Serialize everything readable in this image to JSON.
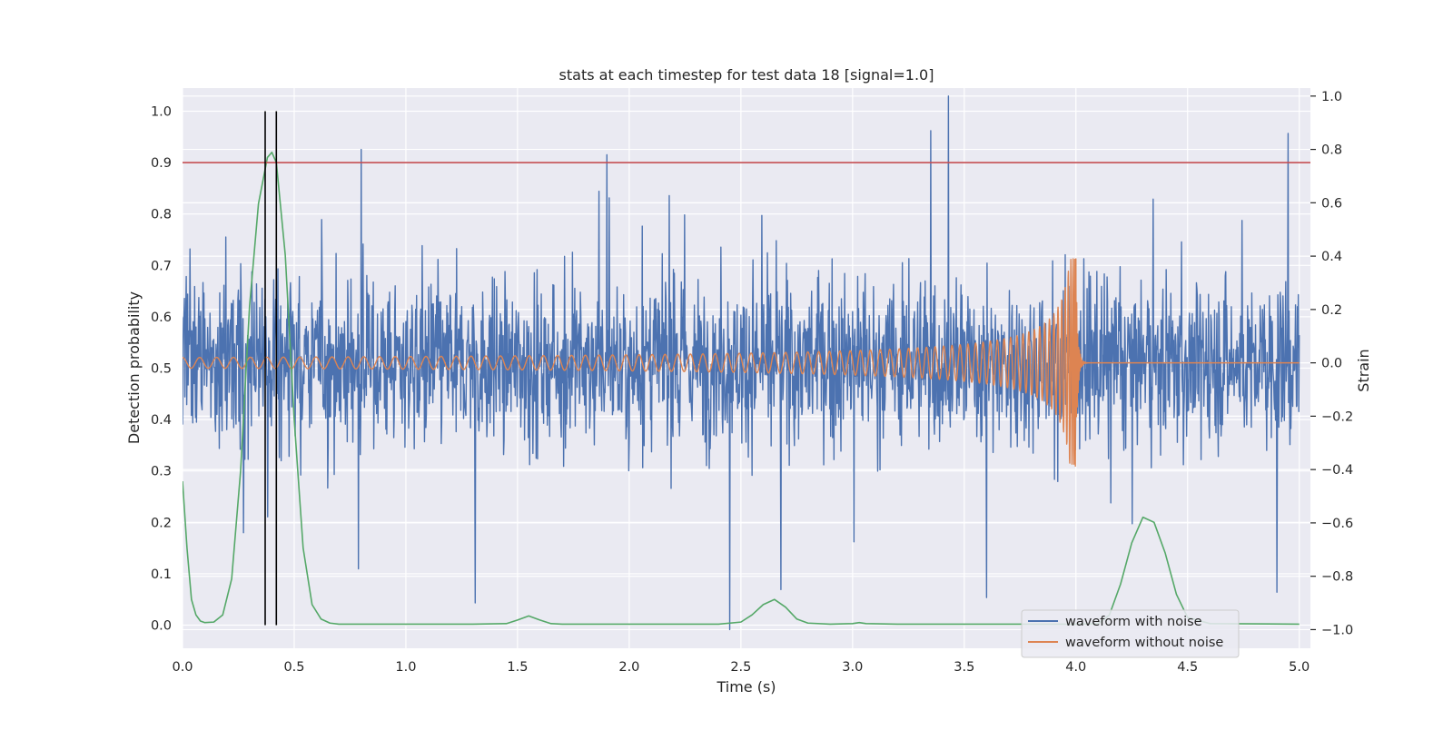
{
  "chart_data": {
    "type": "line",
    "title": "stats at each timestep for test data 18 [signal=1.0]",
    "xlabel": "Time (s)",
    "ylabel_left": "Detection probability",
    "ylabel_right": "Strain",
    "xlim": [
      0.0,
      5.05
    ],
    "ylim_left": [
      -0.045,
      1.045
    ],
    "ylim_right": [
      -1.07,
      1.03
    ],
    "grid": true,
    "legend_position": "lower right",
    "x_ticks": [
      "0.0",
      "0.5",
      "1.0",
      "1.5",
      "2.0",
      "2.5",
      "3.0",
      "3.5",
      "4.0",
      "4.5",
      "5.0"
    ],
    "y_ticks_left": [
      "0.0",
      "0.1",
      "0.2",
      "0.3",
      "0.4",
      "0.5",
      "0.6",
      "0.7",
      "0.8",
      "0.9",
      "1.0"
    ],
    "y_ticks_right": [
      "−1.0",
      "−0.8",
      "−0.6",
      "−0.4",
      "−0.2",
      "0.0",
      "0.2",
      "0.4",
      "0.6",
      "0.8",
      "1.0"
    ],
    "threshold": {
      "axis": "left",
      "y": 0.9,
      "color": "#c44e52"
    },
    "vertical_markers": {
      "x": [
        0.37,
        0.42
      ],
      "y_range": [
        0.0,
        1.0
      ],
      "color": "#000000"
    },
    "series": [
      {
        "name": "waveform with noise",
        "axis": "right",
        "color": "#4c72b0",
        "kind": "noise",
        "x_range": [
          0.0,
          5.0
        ],
        "y_range": [
          -0.92,
          1.0
        ],
        "peaks": [
          {
            "x": 0.8,
            "y": 0.8
          },
          {
            "x": 1.9,
            "y": 0.78
          },
          {
            "x": 3.35,
            "y": 0.87
          },
          {
            "x": 3.43,
            "y": 1.0
          },
          {
            "x": 4.95,
            "y": 0.86
          }
        ],
        "troughs": [
          {
            "x": 1.31,
            "y": -0.9
          },
          {
            "x": 2.45,
            "y": -1.0
          },
          {
            "x": 2.68,
            "y": -0.85
          },
          {
            "x": 3.6,
            "y": -0.88
          },
          {
            "x": 4.9,
            "y": -0.86
          }
        ]
      },
      {
        "name": "waveform without noise",
        "axis": "right",
        "color": "#dd8452",
        "kind": "chirp",
        "x_range": [
          0.0,
          5.0
        ],
        "merger_x": 4.0,
        "start_amplitude": 0.02,
        "peak_amplitude": 0.39
      },
      {
        "name": "",
        "axis": "left",
        "color": "#55a868",
        "kind": "probability",
        "x": [
          0.0,
          0.02,
          0.04,
          0.06,
          0.08,
          0.1,
          0.14,
          0.18,
          0.22,
          0.26,
          0.3,
          0.34,
          0.38,
          0.4,
          0.42,
          0.46,
          0.5,
          0.54,
          0.58,
          0.62,
          0.66,
          0.7,
          0.8,
          1.0,
          1.3,
          1.45,
          1.5,
          1.55,
          1.6,
          1.65,
          1.7,
          2.0,
          2.4,
          2.5,
          2.55,
          2.6,
          2.65,
          2.7,
          2.75,
          2.8,
          2.9,
          3.0,
          3.03,
          3.06,
          3.2,
          3.6,
          4.0,
          4.1,
          4.15,
          4.2,
          4.25,
          4.3,
          4.35,
          4.4,
          4.45,
          4.5,
          4.6,
          5.0
        ],
        "y": [
          0.28,
          0.15,
          0.05,
          0.02,
          0.008,
          0.005,
          0.006,
          0.02,
          0.09,
          0.3,
          0.62,
          0.82,
          0.91,
          0.92,
          0.9,
          0.72,
          0.4,
          0.15,
          0.04,
          0.012,
          0.004,
          0.002,
          0.002,
          0.002,
          0.002,
          0.003,
          0.01,
          0.018,
          0.01,
          0.003,
          0.002,
          0.002,
          0.002,
          0.006,
          0.02,
          0.04,
          0.05,
          0.035,
          0.012,
          0.004,
          0.002,
          0.003,
          0.005,
          0.003,
          0.002,
          0.002,
          0.002,
          0.003,
          0.02,
          0.08,
          0.16,
          0.21,
          0.2,
          0.14,
          0.06,
          0.015,
          0.003,
          0.002
        ]
      }
    ],
    "legend": [
      {
        "label": "waveform with noise",
        "color": "#4c72b0"
      },
      {
        "label": "waveform without noise",
        "color": "#dd8452"
      }
    ]
  }
}
